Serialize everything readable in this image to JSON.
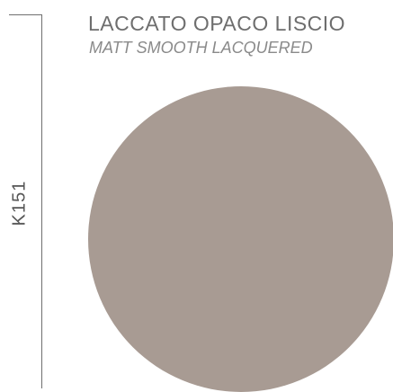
{
  "product": {
    "code": "K151",
    "title_it": "LACCATO OPACO LISCIO",
    "title_en": "MATT SMOOTH LACQUERED"
  },
  "swatch": {
    "color": "#a89b93"
  }
}
